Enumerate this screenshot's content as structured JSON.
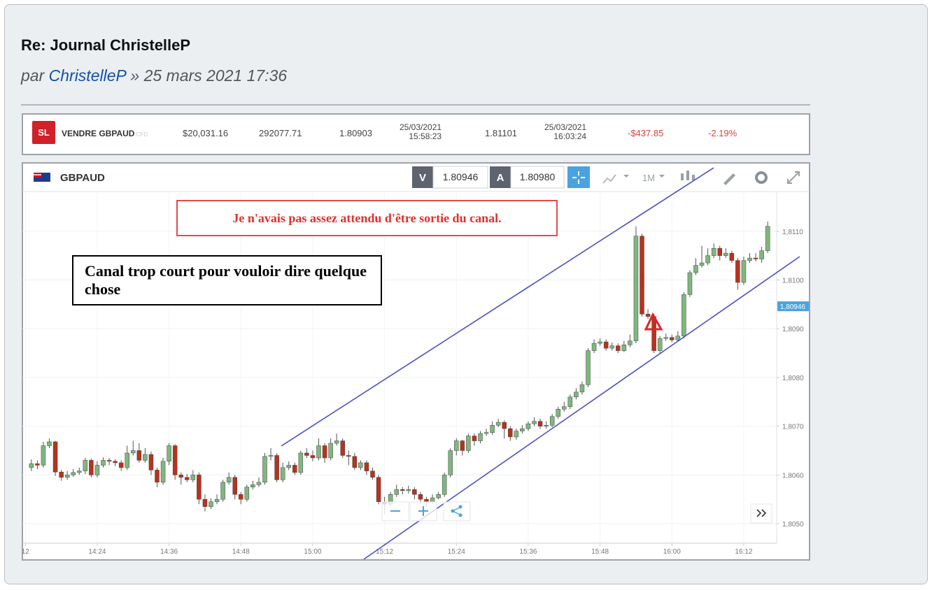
{
  "post": {
    "title": "Re: Journal ChristelleP",
    "by": "par",
    "author": "ChristelleP",
    "date": "» 25 mars 2021 17:36"
  },
  "trade": {
    "badge": "SL",
    "instrument": "VENDRE GBPAUD",
    "suffix": ".CFD",
    "amount": "$20,031.16",
    "units": "292077.71",
    "open_price": "1.80903",
    "open_date": "25/03/2021",
    "open_time": "15:58:23",
    "close_price": "1.81101",
    "close_date": "25/03/2021",
    "close_time": "16:03:24",
    "pnl": "-$437.85",
    "pnl_pct": "-2.19%"
  },
  "toolbar": {
    "symbol": "GBPAUD",
    "sell_label": "V",
    "sell_price": "1.80946",
    "buy_label": "A",
    "buy_price": "1.80980",
    "timeframe": "1M"
  },
  "chart_data": {
    "type": "candlestick",
    "x": [
      853,
      854,
      855,
      856,
      857,
      858,
      859,
      860,
      861,
      862,
      863,
      864,
      865,
      866,
      867,
      868,
      869,
      870,
      871,
      872,
      873,
      874,
      875,
      876,
      877,
      878,
      879,
      880,
      881,
      882,
      883,
      884,
      885,
      886,
      887,
      888,
      889,
      890,
      891,
      892,
      893,
      894,
      895,
      896,
      897,
      898,
      899,
      900,
      901,
      902,
      903,
      904,
      905,
      906,
      907,
      908,
      909,
      910,
      911,
      912,
      913,
      914,
      915,
      916,
      917,
      918,
      919,
      920,
      921,
      922,
      923,
      924,
      925,
      926,
      927,
      928,
      929,
      930,
      931,
      932,
      933,
      934,
      935,
      936,
      937,
      938,
      939,
      940,
      941,
      942,
      943,
      944,
      945,
      946,
      947,
      948,
      949,
      950,
      951,
      952,
      953,
      954,
      955,
      956,
      957,
      958,
      959,
      960,
      961,
      962,
      963,
      964,
      965,
      966,
      967,
      968,
      969,
      970,
      971,
      972,
      973,
      974,
      975,
      976
    ],
    "ohlc": [
      [
        1.80615,
        1.80632,
        1.80608,
        1.80623
      ],
      [
        1.80623,
        1.8063,
        1.80612,
        1.8062
      ],
      [
        1.8062,
        1.80668,
        1.80615,
        1.8066
      ],
      [
        1.8066,
        1.80675,
        1.80655,
        1.80668
      ],
      [
        1.80668,
        1.8067,
        1.80598,
        1.80606
      ],
      [
        1.80606,
        1.8061,
        1.80588,
        1.80595
      ],
      [
        1.80595,
        1.80608,
        1.8059,
        1.806
      ],
      [
        1.806,
        1.80612,
        1.80596,
        1.80605
      ],
      [
        1.80605,
        1.80615,
        1.806,
        1.80608
      ],
      [
        1.80608,
        1.80635,
        1.80602,
        1.8063
      ],
      [
        1.8063,
        1.80634,
        1.80595,
        1.806
      ],
      [
        1.806,
        1.80628,
        1.80595,
        1.8062
      ],
      [
        1.8062,
        1.80636,
        1.80615,
        1.8063
      ],
      [
        1.8063,
        1.80635,
        1.8062,
        1.80628
      ],
      [
        1.80628,
        1.80632,
        1.80618,
        1.80625
      ],
      [
        1.80625,
        1.8063,
        1.80608,
        1.80615
      ],
      [
        1.80615,
        1.8066,
        1.8061,
        1.80645
      ],
      [
        1.80645,
        1.8067,
        1.8064,
        1.8065
      ],
      [
        1.8065,
        1.80665,
        1.80625,
        1.8063
      ],
      [
        1.8063,
        1.80655,
        1.80625,
        1.80642
      ],
      [
        1.80642,
        1.80648,
        1.806,
        1.8061
      ],
      [
        1.8061,
        1.80615,
        1.80575,
        1.80585
      ],
      [
        1.80585,
        1.80635,
        1.8058,
        1.80628
      ],
      [
        1.80628,
        1.80665,
        1.8062,
        1.8066
      ],
      [
        1.8066,
        1.80663,
        1.8059,
        1.806
      ],
      [
        1.806,
        1.80605,
        1.8058,
        1.80595
      ],
      [
        1.80595,
        1.80602,
        1.80585,
        1.8059
      ],
      [
        1.8059,
        1.8061,
        1.80585,
        1.806
      ],
      [
        1.806,
        1.80605,
        1.8054,
        1.8055
      ],
      [
        1.8055,
        1.8056,
        1.80525,
        1.80535
      ],
      [
        1.80535,
        1.80552,
        1.8053,
        1.80545
      ],
      [
        1.80545,
        1.8056,
        1.8054,
        1.8055
      ],
      [
        1.8055,
        1.8059,
        1.80545,
        1.80585
      ],
      [
        1.80585,
        1.80605,
        1.8058,
        1.80595
      ],
      [
        1.80595,
        1.806,
        1.8055,
        1.8056
      ],
      [
        1.8056,
        1.80565,
        1.8054,
        1.8055
      ],
      [
        1.8055,
        1.8058,
        1.80545,
        1.80575
      ],
      [
        1.80575,
        1.80588,
        1.8057,
        1.8058
      ],
      [
        1.8058,
        1.80595,
        1.80575,
        1.80585
      ],
      [
        1.80585,
        1.80645,
        1.8058,
        1.80638
      ],
      [
        1.80638,
        1.80655,
        1.8063,
        1.8064
      ],
      [
        1.8064,
        1.80645,
        1.80585,
        1.8059
      ],
      [
        1.8059,
        1.80625,
        1.80585,
        1.80615
      ],
      [
        1.80615,
        1.80628,
        1.8061,
        1.8062
      ],
      [
        1.8062,
        1.80625,
        1.806,
        1.80605
      ],
      [
        1.80605,
        1.8065,
        1.806,
        1.80645
      ],
      [
        1.80645,
        1.80655,
        1.80635,
        1.8064
      ],
      [
        1.8064,
        1.8065,
        1.80628,
        1.80635
      ],
      [
        1.80635,
        1.80675,
        1.8063,
        1.8066
      ],
      [
        1.8066,
        1.80665,
        1.80625,
        1.80635
      ],
      [
        1.80635,
        1.80675,
        1.8063,
        1.80665
      ],
      [
        1.80665,
        1.80685,
        1.8066,
        1.8067
      ],
      [
        1.8067,
        1.80675,
        1.80635,
        1.8064
      ],
      [
        1.8064,
        1.8065,
        1.8062,
        1.80638
      ],
      [
        1.80638,
        1.80645,
        1.8061,
        1.80615
      ],
      [
        1.80615,
        1.8063,
        1.8061,
        1.80625
      ],
      [
        1.80625,
        1.8063,
        1.806,
        1.80608
      ],
      [
        1.80608,
        1.80615,
        1.8059,
        1.80595
      ],
      [
        1.80595,
        1.806,
        1.8054,
        1.80545
      ],
      [
        1.80545,
        1.80555,
        1.8052,
        1.8054
      ],
      [
        1.8054,
        1.80565,
        1.80535,
        1.8056
      ],
      [
        1.8056,
        1.8058,
        1.80555,
        1.8057
      ],
      [
        1.8057,
        1.80575,
        1.8056,
        1.80568
      ],
      [
        1.80568,
        1.80578,
        1.80562,
        1.8057
      ],
      [
        1.8057,
        1.80575,
        1.8055,
        1.8056
      ],
      [
        1.8056,
        1.80565,
        1.8054,
        1.8055
      ],
      [
        1.8055,
        1.80555,
        1.80535,
        1.80545
      ],
      [
        1.80545,
        1.8056,
        1.8054,
        1.80553
      ],
      [
        1.80553,
        1.80565,
        1.8055,
        1.8056
      ],
      [
        1.8056,
        1.80605,
        1.80555,
        1.806
      ],
      [
        1.806,
        1.80655,
        1.80595,
        1.8065
      ],
      [
        1.8065,
        1.80675,
        1.8064,
        1.8067
      ],
      [
        1.8067,
        1.80672,
        1.8064,
        1.8065
      ],
      [
        1.8065,
        1.80685,
        1.80645,
        1.8068
      ],
      [
        1.8068,
        1.80685,
        1.8066,
        1.8067
      ],
      [
        1.8067,
        1.8069,
        1.80665,
        1.80685
      ],
      [
        1.80685,
        1.80695,
        1.8068,
        1.80687
      ],
      [
        1.80687,
        1.8071,
        1.80682,
        1.80702
      ],
      [
        1.80702,
        1.80715,
        1.80698,
        1.80708
      ],
      [
        1.80708,
        1.80712,
        1.80675,
        1.80695
      ],
      [
        1.80695,
        1.807,
        1.8067,
        1.80678
      ],
      [
        1.80678,
        1.80695,
        1.80672,
        1.8069
      ],
      [
        1.8069,
        1.80702,
        1.80685,
        1.80695
      ],
      [
        1.80695,
        1.8071,
        1.8069,
        1.80705
      ],
      [
        1.80705,
        1.80718,
        1.807,
        1.8071
      ],
      [
        1.8071,
        1.80715,
        1.80695,
        1.807
      ],
      [
        1.807,
        1.8071,
        1.80695,
        1.80702
      ],
      [
        1.80702,
        1.80725,
        1.80698,
        1.8072
      ],
      [
        1.8072,
        1.8074,
        1.80715,
        1.80735
      ],
      [
        1.80735,
        1.8075,
        1.8073,
        1.8074
      ],
      [
        1.8074,
        1.80765,
        1.80735,
        1.8076
      ],
      [
        1.8076,
        1.80778,
        1.80755,
        1.8077
      ],
      [
        1.8077,
        1.80792,
        1.80765,
        1.80785
      ],
      [
        1.80785,
        1.8086,
        1.8078,
        1.80855
      ],
      [
        1.80855,
        1.80878,
        1.8085,
        1.8087
      ],
      [
        1.8087,
        1.8088,
        1.80865,
        1.80873
      ],
      [
        1.80873,
        1.80878,
        1.80855,
        1.8086
      ],
      [
        1.8086,
        1.80872,
        1.80855,
        1.80865
      ],
      [
        1.80865,
        1.8087,
        1.8085,
        1.80855
      ],
      [
        1.80855,
        1.80875,
        1.80852,
        1.80867
      ],
      [
        1.80867,
        1.80888,
        1.80862,
        1.80875
      ],
      [
        1.80875,
        1.8111,
        1.8087,
        1.8109
      ],
      [
        1.8109,
        1.81095,
        1.80925,
        1.8093
      ],
      [
        1.8093,
        1.8094,
        1.8092,
        1.80925
      ],
      [
        1.80925,
        1.8093,
        1.8085,
        1.80855
      ],
      [
        1.80855,
        1.80885,
        1.80848,
        1.8088
      ],
      [
        1.8088,
        1.8089,
        1.80875,
        1.80882
      ],
      [
        1.80882,
        1.80888,
        1.80872,
        1.80877
      ],
      [
        1.80877,
        1.80895,
        1.80875,
        1.80885
      ],
      [
        1.80885,
        1.80975,
        1.8088,
        1.8097
      ],
      [
        1.8097,
        1.8102,
        1.80965,
        1.81015
      ],
      [
        1.81015,
        1.81045,
        1.8101,
        1.8103
      ],
      [
        1.8103,
        1.8107,
        1.81025,
        1.81035
      ],
      [
        1.81035,
        1.81065,
        1.8103,
        1.8105
      ],
      [
        1.8105,
        1.81075,
        1.81045,
        1.81065
      ],
      [
        1.81065,
        1.8107,
        1.8104,
        1.8105
      ],
      [
        1.8105,
        1.81065,
        1.81045,
        1.81055
      ],
      [
        1.81055,
        1.8106,
        1.81035,
        1.8104
      ],
      [
        1.8104,
        1.81045,
        1.8098,
        1.80995
      ],
      [
        1.80995,
        1.81048,
        1.8099,
        1.8104
      ],
      [
        1.8104,
        1.81055,
        1.81035,
        1.81045
      ],
      [
        1.81045,
        1.81055,
        1.81038,
        1.81043
      ],
      [
        1.81043,
        1.81068,
        1.81035,
        1.8106
      ],
      [
        1.8106,
        1.8112,
        1.81055,
        1.8111
      ]
    ],
    "up_color": "#7fb77e",
    "down_color": "#b8321d",
    "xlim": [
      851.5,
      977.5
    ],
    "xticks": [
      {
        "value": 852,
        "label": "12"
      },
      {
        "value": 864,
        "label": "14:24"
      },
      {
        "value": 876,
        "label": "14:36"
      },
      {
        "value": 888,
        "label": "14:48"
      },
      {
        "value": 900,
        "label": "15:00"
      },
      {
        "value": 912,
        "label": "15:12"
      },
      {
        "value": 924,
        "label": "15:24"
      },
      {
        "value": 936,
        "label": "15:36"
      },
      {
        "value": 948,
        "label": "15:48"
      },
      {
        "value": 960,
        "label": "16:00"
      },
      {
        "value": 972,
        "label": "16:12"
      }
    ],
    "ylim": [
      1.8046,
      1.8118
    ],
    "yticks": [
      {
        "value": 1.805,
        "label": "1,8050"
      },
      {
        "value": 1.806,
        "label": "1,8060"
      },
      {
        "value": 1.807,
        "label": "1,8070"
      },
      {
        "value": 1.808,
        "label": "1,8080"
      },
      {
        "value": 1.809,
        "label": "1,8090"
      },
      {
        "value": 1.81,
        "label": "1,8100"
      },
      {
        "value": 1.811,
        "label": "1,8110"
      }
    ],
    "grid": true,
    "price_marker": {
      "value": 1.80946,
      "label": "1,80946",
      "color": "#4aa3df"
    },
    "annotations": [
      "Je n'avais pas assez attendu d'être sortie du canal.",
      "Canal trop court pour vouloir dire quelque chose"
    ]
  }
}
